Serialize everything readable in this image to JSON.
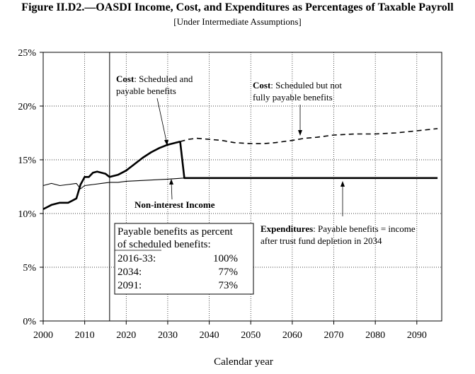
{
  "chart_data": {
    "type": "line",
    "title": "Figure II.D2.—OASDI Income, Cost, and Expenditures as Percentages of Taxable Payroll",
    "subtitle": "[Under Intermediate Assumptions]",
    "xlabel": "Calendar year",
    "ylabel": "",
    "xlim": [
      2000,
      2096
    ],
    "ylim": [
      0,
      25
    ],
    "xticks": [
      2000,
      2010,
      2020,
      2030,
      2040,
      2050,
      2060,
      2070,
      2080,
      2090
    ],
    "yticks": [
      0,
      5,
      10,
      15,
      20,
      25
    ],
    "ytick_labels": [
      "0%",
      "5%",
      "10%",
      "15%",
      "20%",
      "25%"
    ],
    "grid": true,
    "divider_year": 2016,
    "series": [
      {
        "name": "Cost: Scheduled and payable benefits",
        "style": "solid-thick",
        "x": [
          2000,
          2002,
          2004,
          2006,
          2007,
          2008,
          2009,
          2010,
          2011,
          2012,
          2013,
          2014,
          2015,
          2016,
          2017,
          2018,
          2020,
          2022,
          2024,
          2026,
          2028,
          2030,
          2032,
          2033
        ],
        "y": [
          10.4,
          10.8,
          11.0,
          11.0,
          11.2,
          11.4,
          12.7,
          13.4,
          13.4,
          13.8,
          13.9,
          13.8,
          13.7,
          13.4,
          13.5,
          13.6,
          14.0,
          14.6,
          15.2,
          15.7,
          16.1,
          16.4,
          16.6,
          16.7
        ]
      },
      {
        "name": "Cost: Scheduled but not fully payable benefits",
        "style": "dashed",
        "x": [
          2033,
          2035,
          2037,
          2040,
          2043,
          2046,
          2050,
          2053,
          2056,
          2060,
          2063,
          2066,
          2070,
          2075,
          2080,
          2085,
          2090,
          2095
        ],
        "y": [
          16.7,
          16.9,
          17.0,
          16.9,
          16.8,
          16.6,
          16.5,
          16.5,
          16.6,
          16.8,
          17.0,
          17.1,
          17.3,
          17.4,
          17.4,
          17.5,
          17.7,
          17.9
        ]
      },
      {
        "name": "Non-interest Income",
        "style": "solid-thin",
        "x": [
          2000,
          2002,
          2004,
          2006,
          2008,
          2009,
          2010,
          2012,
          2014,
          2016,
          2018,
          2020,
          2025,
          2030,
          2034
        ],
        "y": [
          12.6,
          12.8,
          12.6,
          12.7,
          12.8,
          12.3,
          12.6,
          12.7,
          12.8,
          12.9,
          12.9,
          13.0,
          13.1,
          13.2,
          13.3
        ]
      },
      {
        "name": "Expenditures: Payable benefits = income after trust fund depletion in 2034",
        "style": "solid-thick",
        "x": [
          2033,
          2034,
          2040,
          2050,
          2060,
          2070,
          2080,
          2090,
          2095
        ],
        "y": [
          16.7,
          13.3,
          13.3,
          13.3,
          13.3,
          13.3,
          13.3,
          13.3,
          13.3
        ]
      }
    ],
    "annotations": {
      "cost_payable": {
        "bold": "Cost",
        "text_line1": ": Scheduled and",
        "text_line2": "payable benefits"
      },
      "cost_not_payable": {
        "bold": "Cost",
        "text_line1": ": Scheduled but not",
        "text_line2": "fully payable benefits"
      },
      "income": {
        "bold": "Non-interest Income"
      },
      "expenditures": {
        "bold": "Expenditures",
        "text_line1": ": Payable benefits = income",
        "text_line2": "after trust fund depletion in 2034"
      }
    },
    "payable_box": {
      "heading_line1": "Payable benefits as percent",
      "heading_line2": "of scheduled benefits:",
      "rows": [
        {
          "period": "2016-33:",
          "value": "100%"
        },
        {
          "period": "2034:",
          "value": "77%"
        },
        {
          "period": "2091:",
          "value": "73%"
        }
      ]
    }
  }
}
